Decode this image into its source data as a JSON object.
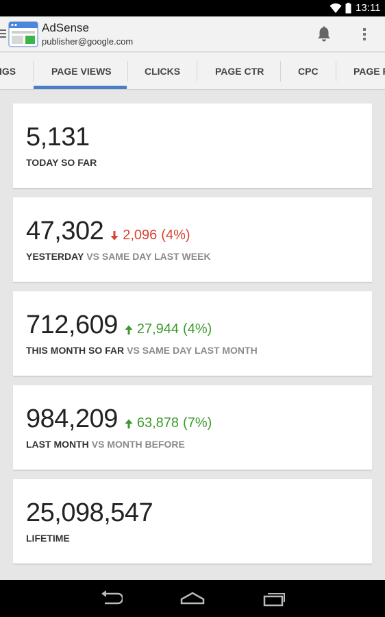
{
  "status_bar": {
    "time": "13:11",
    "icons": [
      "wifi-icon",
      "battery-icon"
    ]
  },
  "app_bar": {
    "title": "AdSense",
    "account": "publisher@google.com",
    "icons": [
      "menu-icon",
      "adsense-logo",
      "notifications-bell-icon",
      "overflow-menu-icon"
    ]
  },
  "tabs": [
    {
      "label": "IGS",
      "selected": false
    },
    {
      "label": "PAGE VIEWS",
      "selected": true
    },
    {
      "label": "CLICKS",
      "selected": false
    },
    {
      "label": "PAGE CTR",
      "selected": false
    },
    {
      "label": "CPC",
      "selected": false
    },
    {
      "label": "PAGE R",
      "selected": false
    }
  ],
  "cards": [
    {
      "value": "5,131",
      "caption_primary": "TODAY SO FAR",
      "caption_secondary": ""
    },
    {
      "value": "47,302",
      "delta_direction": "down",
      "delta_value": "2,096",
      "delta_pct": "(4%)",
      "caption_primary": "YESTERDAY",
      "caption_secondary": "VS SAME DAY LAST WEEK"
    },
    {
      "value": "712,609",
      "delta_direction": "up",
      "delta_value": "27,944",
      "delta_pct": "(4%)",
      "caption_primary": "THIS MONTH SO FAR",
      "caption_secondary": "VS SAME DAY LAST MONTH"
    },
    {
      "value": "984,209",
      "delta_direction": "up",
      "delta_value": "63,878",
      "delta_pct": "(7%)",
      "caption_primary": "LAST MONTH",
      "caption_secondary": "VS MONTH BEFORE"
    },
    {
      "value": "25,098,547",
      "caption_primary": "LIFETIME",
      "caption_secondary": ""
    }
  ],
  "nav_bar": {
    "icons": [
      "back-icon",
      "home-icon",
      "recent-apps-icon"
    ]
  },
  "colors": {
    "accent": "#4a7fc8",
    "down": "#d9422f",
    "up": "#3b9a2a",
    "background": "#e6e6e6"
  }
}
